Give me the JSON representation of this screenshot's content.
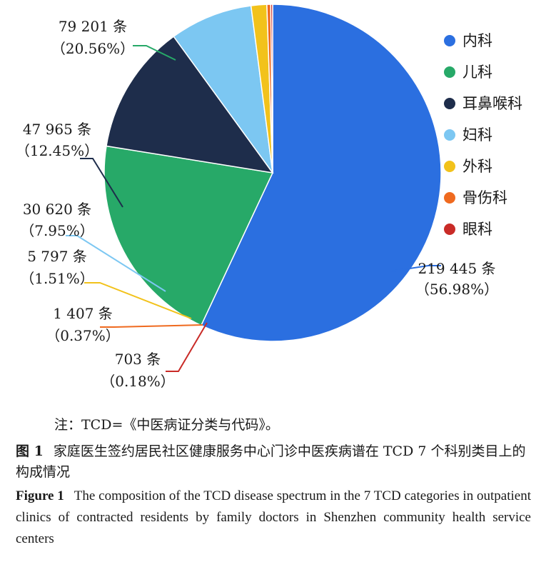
{
  "chart_data": {
    "type": "pie",
    "title": "",
    "unit": "条",
    "legend_position": "right",
    "series": [
      {
        "name": "内科",
        "value": 219445,
        "label_value": "219 445 条",
        "label_pct": "（56.98%）",
        "color": "#2b6fe0"
      },
      {
        "name": "儿科",
        "value": 79201,
        "label_value": "79 201 条",
        "label_pct": "（20.56%）",
        "color": "#27a968"
      },
      {
        "name": "耳鼻喉科",
        "value": 47965,
        "label_value": "47 965 条",
        "label_pct": "（12.45%）",
        "color": "#1e2d4b"
      },
      {
        "name": "妇科",
        "value": 30620,
        "label_value": "30 620 条",
        "label_pct": "（7.95%）",
        "color": "#7cc7f2"
      },
      {
        "name": "外科",
        "value": 5797,
        "label_value": "5 797 条",
        "label_pct": "（1.51%）",
        "color": "#f2c21b"
      },
      {
        "name": "骨伤科",
        "value": 1407,
        "label_value": "1 407 条",
        "label_pct": "（0.37%）",
        "color": "#ef6a1f"
      },
      {
        "name": "眼科",
        "value": 703,
        "label_value": "703 条",
        "label_pct": "（0.18%）",
        "color": "#c92b27"
      }
    ]
  },
  "note": "注：TCD=《中医病证分类与代码》。",
  "figure_zh": {
    "label": "图 1",
    "text": "家庭医生签约居民社区健康服务中心门诊中医疾病谱在 TCD 7 个科别类目上的构成情况"
  },
  "figure_en": {
    "label": "Figure 1",
    "text": "The composition of the TCD disease spectrum in the 7 TCD categories in outpatient clinics of contracted residents by family doctors in Shenzhen community health service centers"
  }
}
